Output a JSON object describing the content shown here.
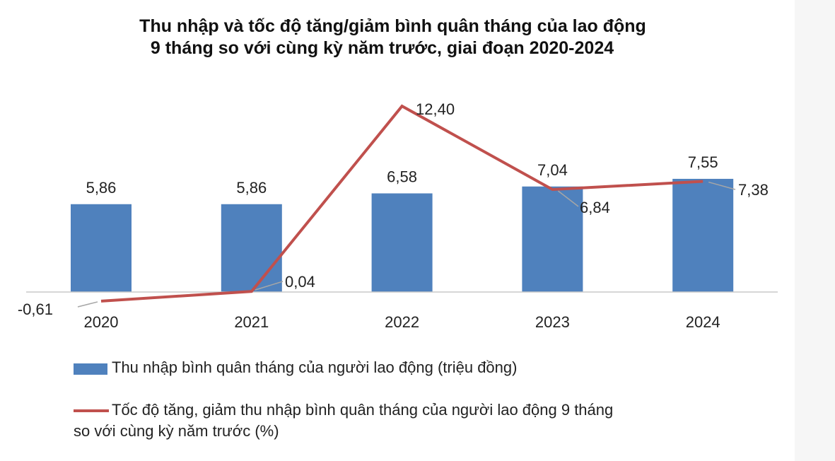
{
  "chart_data": {
    "type": "bar+line",
    "title_lines": [
      "Thu nhập và tốc độ tăng/giảm bình quân tháng của lao động",
      "9 tháng so với cùng kỳ năm trước, giai đoạn 2020-2024"
    ],
    "categories": [
      "2020",
      "2021",
      "2022",
      "2023",
      "2024"
    ],
    "series": [
      {
        "name": "Thu nhập bình quân tháng của người lao động (triệu đồng)",
        "type": "bar",
        "color": "#4f81bd",
        "values": [
          5.86,
          5.86,
          6.58,
          7.04,
          7.55
        ],
        "labels": [
          "5,86",
          "5,86",
          "6,58",
          "7,04",
          "7,55"
        ]
      },
      {
        "name": "Tốc độ tăng, giảm thu nhập bình quân tháng của người lao động 9 tháng so với cùng kỳ năm trước (%)",
        "name_lines": [
          "Tốc độ tăng, giảm thu nhập bình quân tháng của người lao động 9 tháng",
          "so với cùng kỳ năm trước (%)"
        ],
        "type": "line",
        "color": "#c0504d",
        "values": [
          -0.61,
          0.04,
          12.4,
          6.84,
          7.38
        ],
        "labels": [
          "-0,61",
          "0,04",
          "12,40",
          "6,84",
          "7,38"
        ]
      }
    ],
    "grid": false,
    "legend_position": "bottom"
  }
}
